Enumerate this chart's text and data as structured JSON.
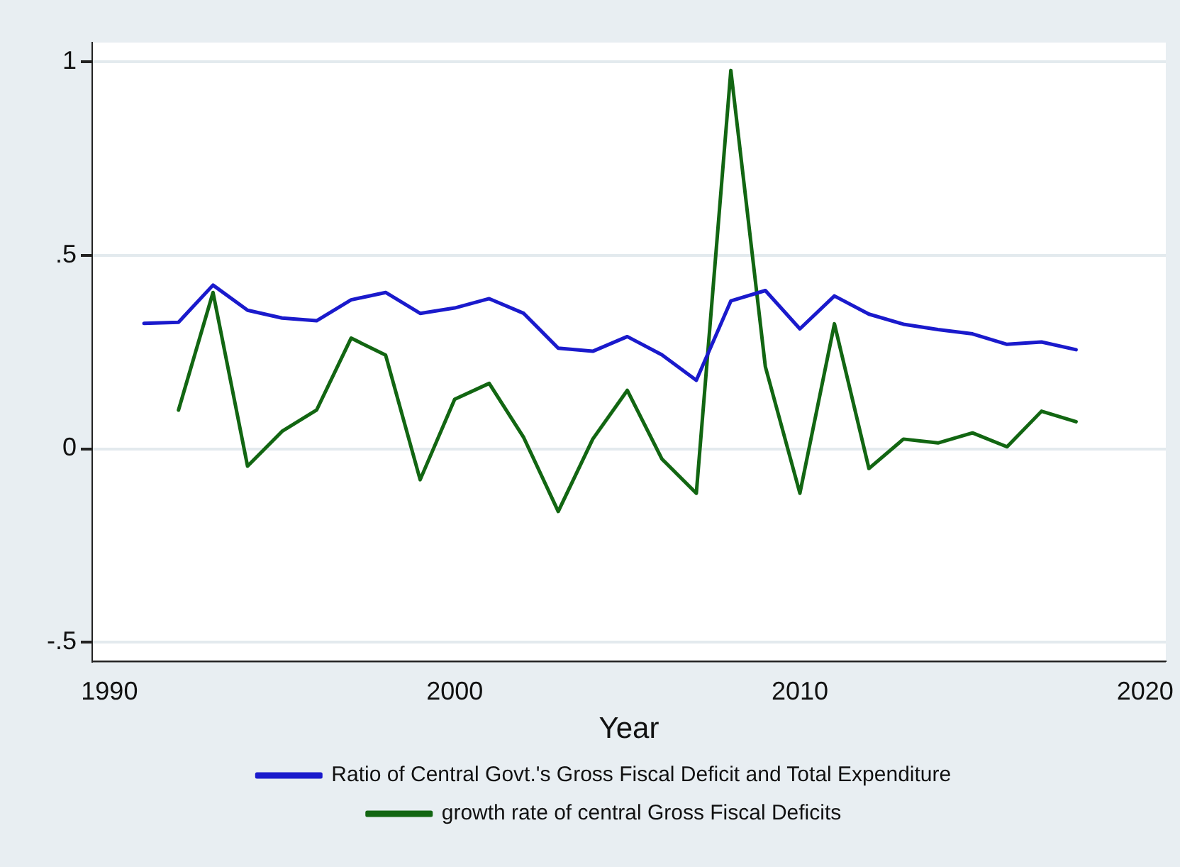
{
  "chart_data": {
    "type": "line",
    "xlabel": "Year",
    "x": [
      1991,
      1992,
      1993,
      1994,
      1995,
      1996,
      1997,
      1998,
      1999,
      2000,
      2001,
      2002,
      2003,
      2004,
      2005,
      2006,
      2007,
      2008,
      2009,
      2010,
      2011,
      2012,
      2013,
      2014,
      2015,
      2016,
      2017,
      2018
    ],
    "xlim": [
      1989.5,
      2020.6
    ],
    "xticks": [
      1990,
      2000,
      2010,
      2020
    ],
    "ylim": [
      -0.55,
      1.05
    ],
    "yticks": [
      {
        "value": -0.5,
        "label": "-.5"
      },
      0,
      {
        "value": 0.5,
        "label": ".5"
      },
      1
    ],
    "grid": "y",
    "legend": "bottom",
    "marker": "none",
    "line_style": "solid",
    "series": [
      {
        "name": "Ratio of Central Govt.'s Gross Fiscal Deficit and Total Expenditure",
        "color": "#1a1acc",
        "values": [
          0.324,
          0.327,
          0.423,
          0.358,
          0.338,
          0.331,
          0.385,
          0.404,
          0.35,
          0.364,
          0.388,
          0.35,
          0.26,
          0.252,
          0.29,
          0.243,
          0.177,
          0.382,
          0.409,
          0.31,
          0.395,
          0.348,
          0.322,
          0.308,
          0.297,
          0.27,
          0.276,
          0.256
        ]
      },
      {
        "name": "growth rate of central Gross Fiscal Deficits",
        "color": "#126612",
        "values": [
          null,
          0.1,
          0.404,
          -0.045,
          0.045,
          0.1,
          0.286,
          0.242,
          -0.08,
          0.128,
          0.169,
          0.029,
          -0.162,
          0.025,
          0.151,
          -0.026,
          -0.115,
          0.978,
          0.212,
          -0.115,
          0.323,
          -0.051,
          0.025,
          0.015,
          0.041,
          0.005,
          0.097,
          0.07
        ]
      }
    ]
  }
}
